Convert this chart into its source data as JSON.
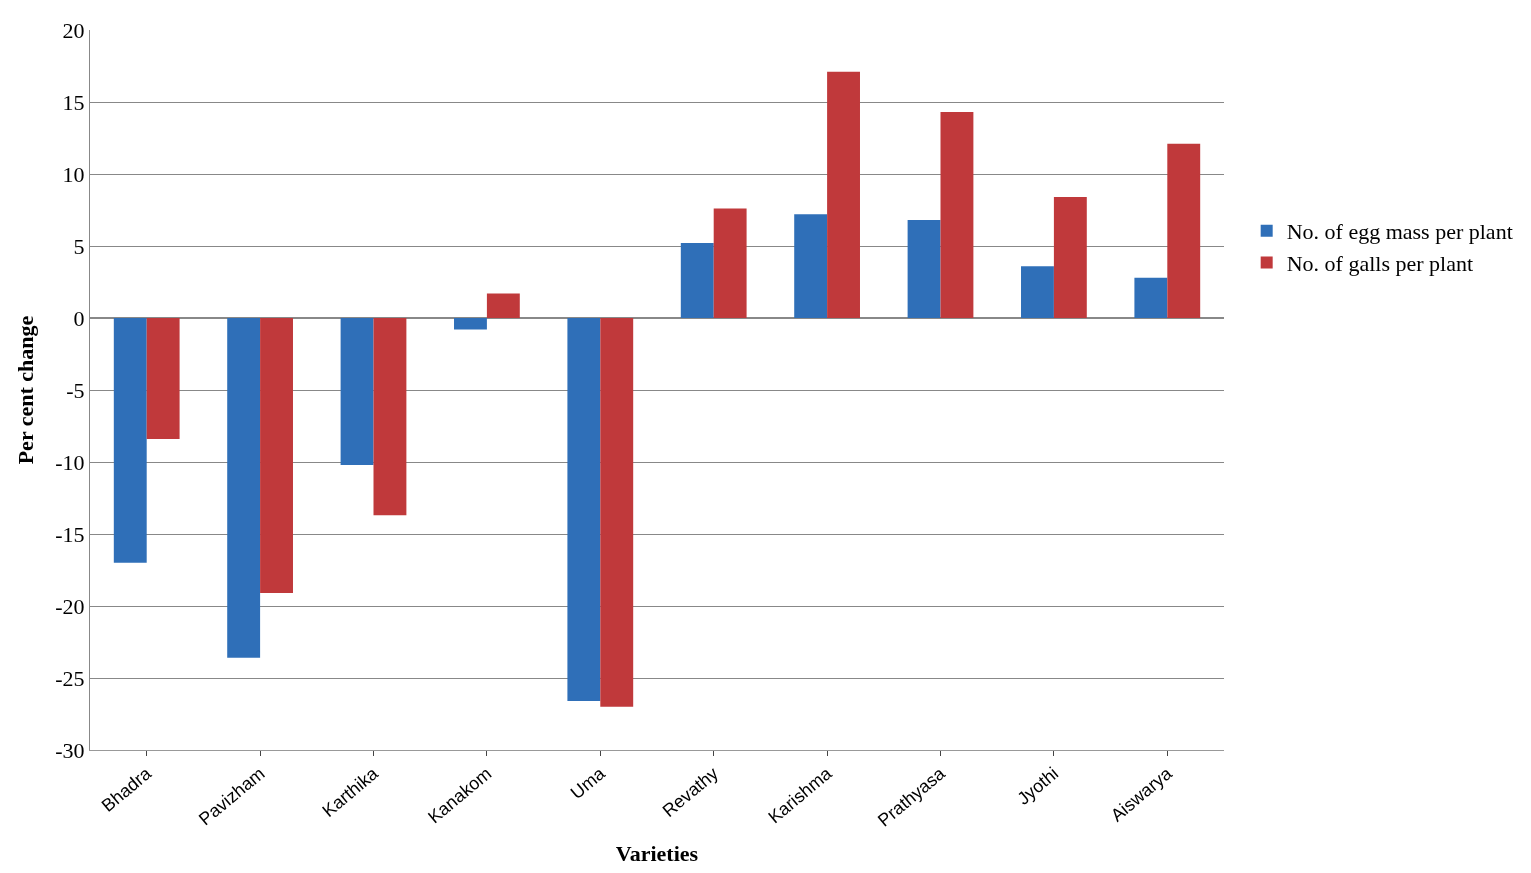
{
  "chart_data": {
    "type": "bar",
    "xlabel": "Varieties",
    "ylabel": "Per cent change",
    "categories": [
      "Bhadra",
      "Pavizham",
      "Karthika",
      "Kanakom",
      "Uma",
      "Revathy",
      "Karishma",
      "Prathyasa",
      "Jyothi",
      "Aiswarya"
    ],
    "series": [
      {
        "name": "No. of egg mass per plant",
        "color": "#2f6fb8",
        "values": [
          -17,
          -23.6,
          -10.2,
          -0.8,
          -26.6,
          5.2,
          7.2,
          6.8,
          3.6,
          2.8
        ]
      },
      {
        "name": "No. of galls per plant",
        "color": "#c0393b",
        "values": [
          -8.4,
          -19.1,
          -13.7,
          1.7,
          -27.0,
          7.6,
          17.1,
          14.3,
          8.4,
          12.1
        ]
      }
    ],
    "ylim": [
      -30,
      20
    ],
    "yticks": [
      -30,
      -25,
      -20,
      -15,
      -10,
      -5,
      0,
      5,
      10,
      15,
      20
    ],
    "grid": "y",
    "legend": "right"
  }
}
